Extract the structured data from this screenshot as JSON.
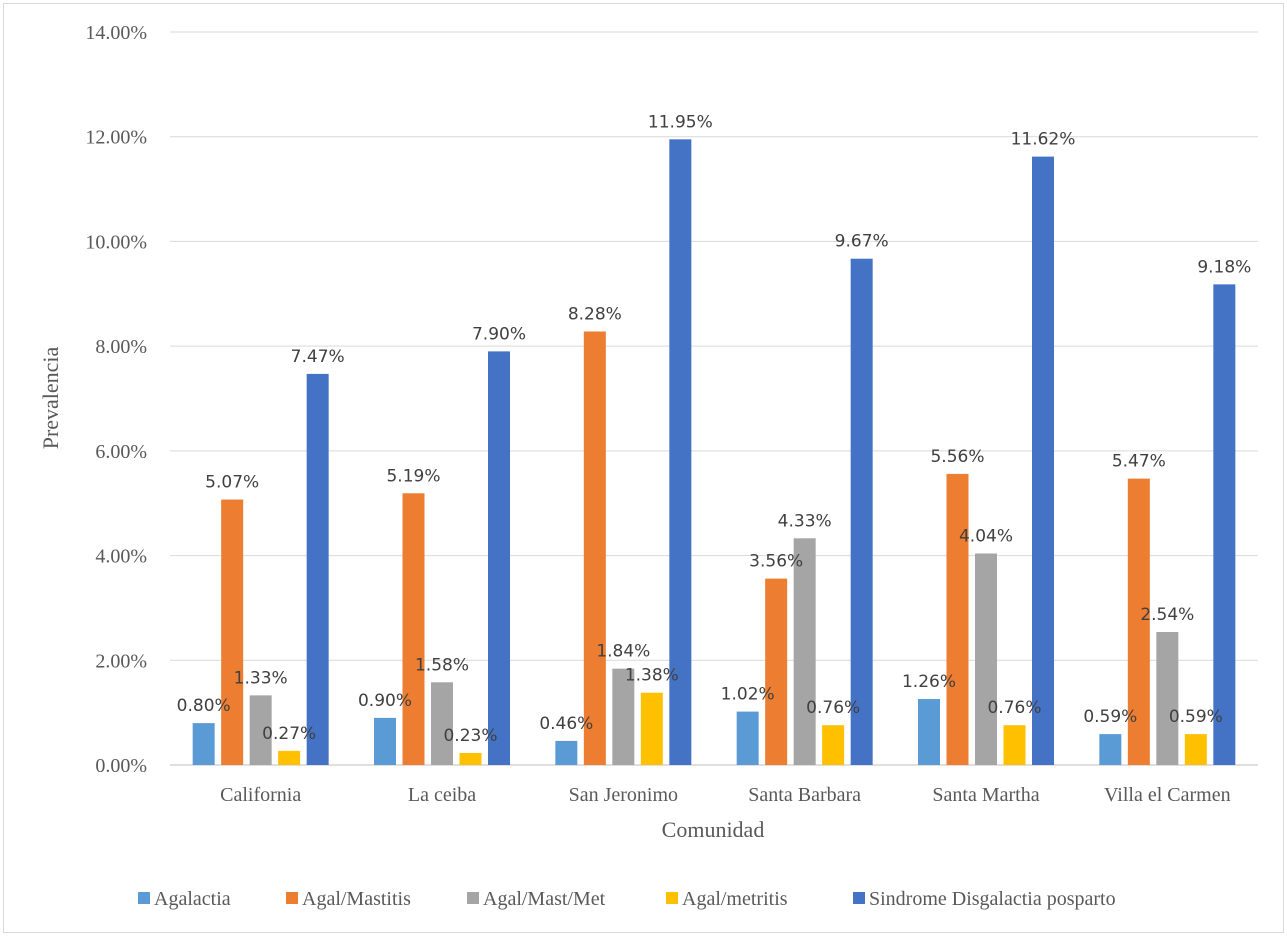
{
  "chart_data": {
    "type": "bar",
    "title": "",
    "xlabel": "Comunidad",
    "ylabel": "Prevalencia",
    "ylim": [
      0,
      0.14
    ],
    "yticks": [
      "0.00%",
      "2.00%",
      "4.00%",
      "6.00%",
      "8.00%",
      "10.00%",
      "12.00%",
      "14.00%"
    ],
    "grid": true,
    "legend_position": "bottom",
    "categories": [
      "California",
      "La ceiba",
      "San Jeronimo",
      "Santa Barbara",
      "Santa Martha",
      "Villa el Carmen"
    ],
    "series": [
      {
        "name": "Agalactia",
        "color": "#5b9bd5",
        "values": [
          0.008,
          0.009,
          0.0046,
          0.0102,
          0.0126,
          0.0059
        ],
        "labels": [
          "0.80%",
          "0.90%",
          "0.46%",
          "1.02%",
          "1.26%",
          "0.59%"
        ]
      },
      {
        "name": "Agal/Mastitis",
        "color": "#ed7d31",
        "values": [
          0.0507,
          0.0519,
          0.0828,
          0.0356,
          0.0556,
          0.0547
        ],
        "labels": [
          "5.07%",
          "5.19%",
          "8.28%",
          "3.56%",
          "5.56%",
          "5.47%"
        ]
      },
      {
        "name": "Agal/Mast/Met",
        "color": "#a5a5a5",
        "values": [
          0.0133,
          0.0158,
          0.0184,
          0.0433,
          0.0404,
          0.0254
        ],
        "labels": [
          "1.33%",
          "1.58%",
          "1.84%",
          "4.33%",
          "4.04%",
          "2.54%"
        ]
      },
      {
        "name": "Agal/metritis",
        "color": "#ffc000",
        "values": [
          0.0027,
          0.0023,
          0.0138,
          0.0076,
          0.0076,
          0.0059
        ],
        "labels": [
          "0.27%",
          "0.23%",
          "1.38%",
          "0.76%",
          "0.76%",
          "0.59%"
        ]
      },
      {
        "name": "Sindrome Disgalactia posparto",
        "color": "#4472c4",
        "values": [
          0.0747,
          0.079,
          0.1195,
          0.0967,
          0.1162,
          0.0918
        ],
        "labels": [
          "7.47%",
          "7.90%",
          "11.95%",
          "9.67%",
          "11.62%",
          "9.18%"
        ]
      }
    ]
  }
}
